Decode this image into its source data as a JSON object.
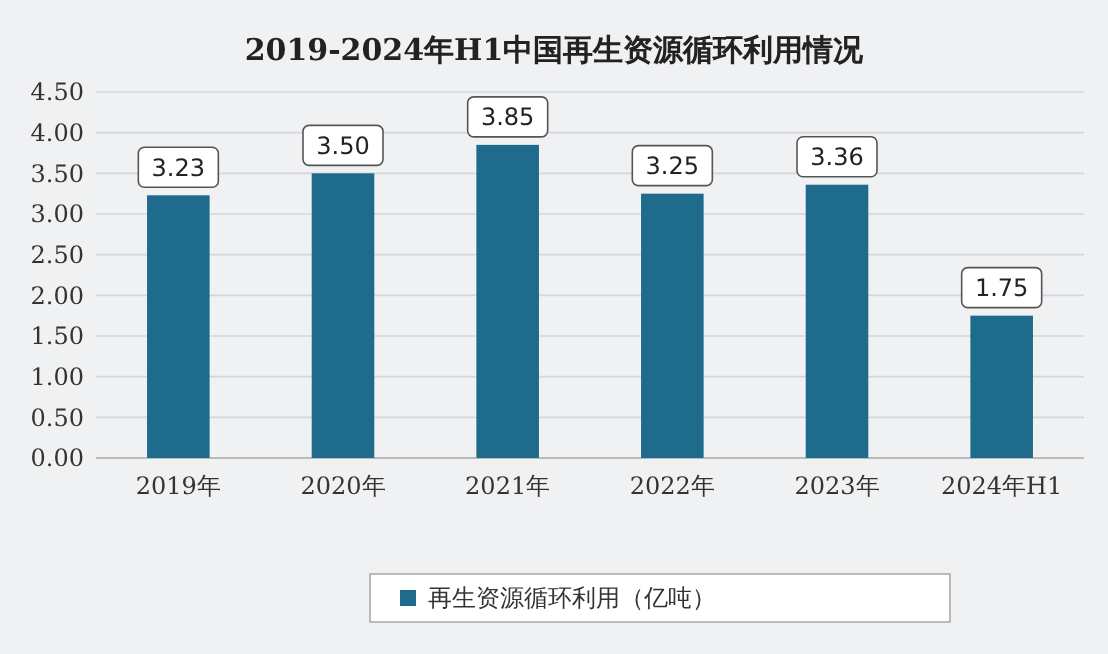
{
  "chart_data": {
    "type": "bar",
    "title": "2019-2024年H1中国再生资源循环利用情况",
    "categories": [
      "2019年",
      "2020年",
      "2021年",
      "2022年",
      "2023年",
      "2024年H1"
    ],
    "series": [
      {
        "name": "再生资源循环利用（亿吨）",
        "color": "#1e6b8c",
        "values": [
          3.23,
          3.5,
          3.85,
          3.25,
          3.36,
          1.75
        ],
        "value_labels": [
          "3.23",
          "3.50",
          "3.85",
          "3.25",
          "3.36",
          "1.75"
        ]
      }
    ],
    "ylim": [
      0,
      4.5
    ],
    "yticks": [
      {
        "value": 0,
        "label": "0.00"
      },
      {
        "value": 0.5,
        "label": "0.50"
      },
      {
        "value": 1,
        "label": "1.00"
      },
      {
        "value": 1.5,
        "label": "1.50"
      },
      {
        "value": 2,
        "label": "2.00"
      },
      {
        "value": 2.5,
        "label": "2.50"
      },
      {
        "value": 3,
        "label": "3.00"
      },
      {
        "value": 3.5,
        "label": "3.50"
      },
      {
        "value": 4,
        "label": "4.00"
      },
      {
        "value": 4.5,
        "label": "4.50"
      }
    ],
    "grid": "y",
    "legend": "bottom"
  }
}
